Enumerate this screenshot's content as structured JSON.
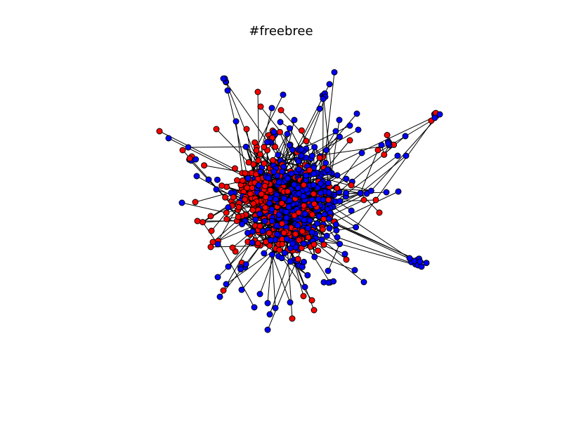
{
  "figure": {
    "title": "#freebree"
  },
  "colors": {
    "background": "#ffffff",
    "edge": "#000000",
    "node_outline": "#000000",
    "group_a": "#0000ff",
    "group_b": "#ff0000"
  },
  "legend": []
}
